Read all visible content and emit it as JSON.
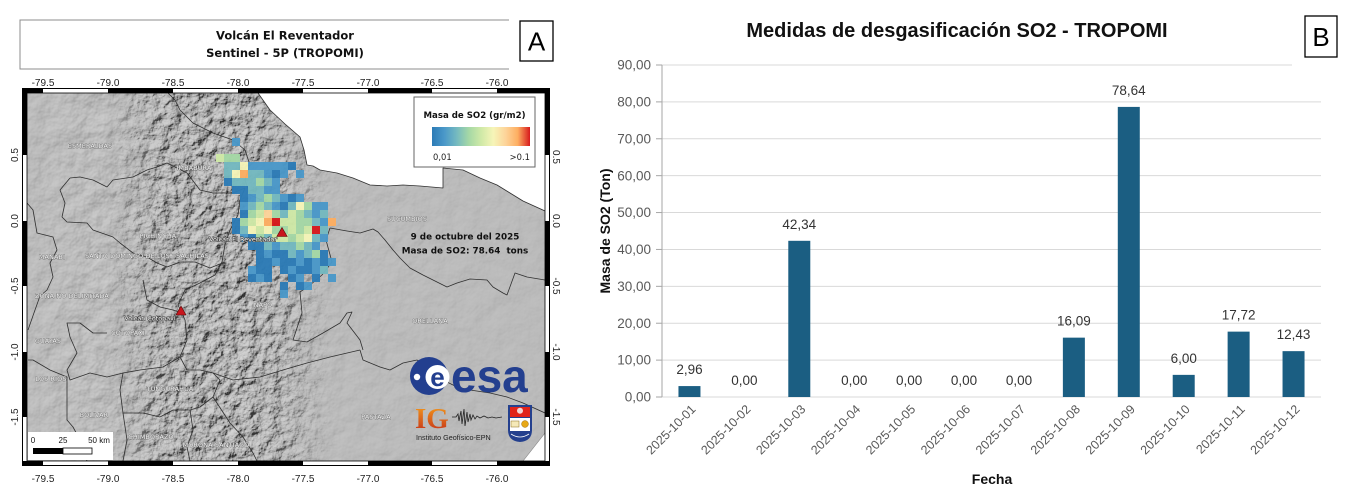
{
  "panel_a": {
    "label": "A",
    "title_line1": "Volcán El Reventador",
    "title_line2": "Sentinel - 5P (TROPOMI)",
    "lon_ticks": [
      "-79.5",
      "-79.0",
      "-78.5",
      "-78.0",
      "-77.5",
      "-77.0",
      "-76.5",
      "-76.0"
    ],
    "lat_ticks": [
      "0.5",
      "0.0",
      "-0.5",
      "-1.0",
      "-1.5"
    ],
    "legend": {
      "title": "Masa de SO2 (gr/m2)",
      "min_label": "0,01",
      "max_label": ">0.1",
      "colors": [
        "#2c7bb6",
        "#4a98c9",
        "#74b9c0",
        "#a5d8a6",
        "#cfe9a7",
        "#f6f5b8",
        "#fdd49a",
        "#fdae61",
        "#d7191c"
      ]
    },
    "annotation": {
      "date": "9 de octubre del 2025",
      "mass": "Masa de SO2: 78.64  tons"
    },
    "volcanoes": [
      {
        "name": "Volcán El Reventador"
      },
      {
        "name": "Volcán Cotopaxi"
      }
    ],
    "provinces": [
      "ESMERALDAS",
      "IMBABURA",
      "PICHINCHA",
      "MANABI",
      "SANTO DOMINGO DE LOS TSACHILAS",
      "SUCUMBIOS",
      "ZONA NO DELIMITADA",
      "COTOPAXI",
      "GUAYAS",
      "LOS RIOS",
      "TUNGURAHUA",
      "BOLIVAR",
      "CHIMBORAZO",
      "MORONA SANTIAGO",
      "NAPO",
      "ORELLANA",
      "PASTAZA"
    ],
    "scale_bar": {
      "labels": [
        "0",
        "25",
        "50 km"
      ]
    },
    "logos": {
      "esa": "esa",
      "ig": "IG",
      "ig_name": "Instituto Geofísico-EPN"
    },
    "colors": {
      "volcano_marker": "#c8161d",
      "esa_blue": "#233f8f"
    }
  },
  "panel_b": {
    "label": "B"
  },
  "chart_data": {
    "type": "bar",
    "title": "Medidas de desgasificación SO2 - TROPOMI",
    "xlabel": "Fecha",
    "ylabel": "Masa de SO2 (Ton)",
    "categories": [
      "2025-10-01",
      "2025-10-02",
      "2025-10-03",
      "2025-10-04",
      "2025-10-05",
      "2025-10-06",
      "2025-10-07",
      "2025-10-08",
      "2025-10-09",
      "2025-10-10",
      "2025-10-11",
      "2025-10-12"
    ],
    "values": [
      2.96,
      0.0,
      42.34,
      0.0,
      0.0,
      0.0,
      0.0,
      16.09,
      78.64,
      6.0,
      17.72,
      12.43
    ],
    "value_labels": [
      "2,96",
      "0,00",
      "42,34",
      "0,00",
      "0,00",
      "0,00",
      "0,00",
      "16,09",
      "78,64",
      "6,00",
      "17,72",
      "12,43"
    ],
    "ylim": [
      0,
      90
    ],
    "yticks": [
      0,
      10,
      20,
      30,
      40,
      50,
      60,
      70,
      80,
      90
    ],
    "ytick_labels": [
      "0,00",
      "10,00",
      "20,00",
      "30,00",
      "40,00",
      "50,00",
      "60,00",
      "70,00",
      "80,00",
      "90,00"
    ],
    "grid": true,
    "legend": "none",
    "bar_color": "#1b5e82"
  }
}
